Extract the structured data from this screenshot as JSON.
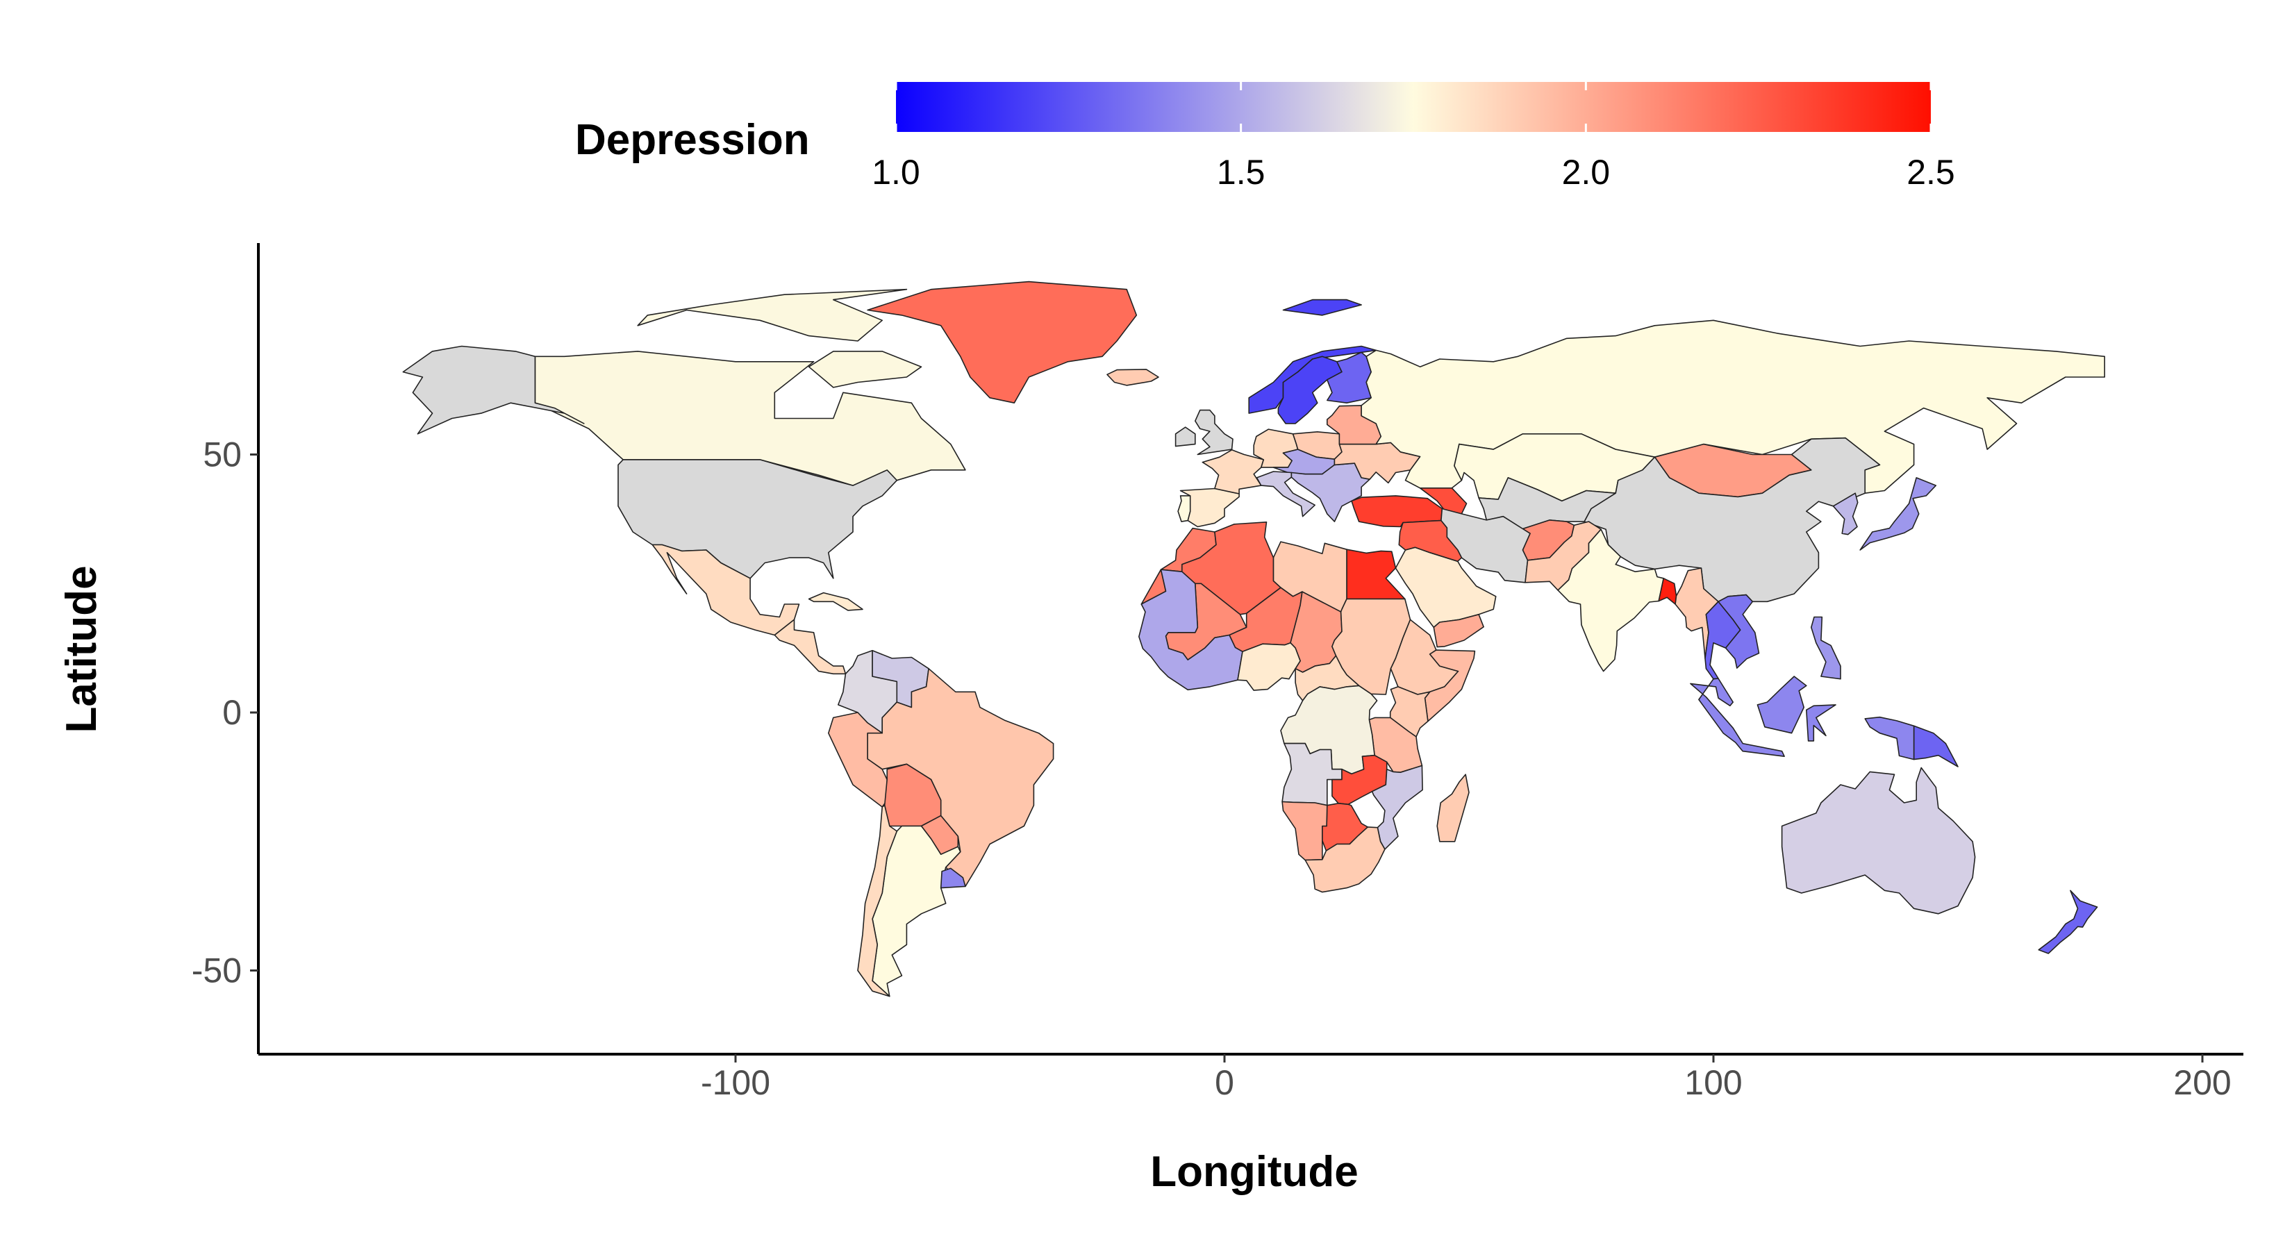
{
  "chart_data": {
    "type": "choropleth",
    "xlabel": "Longitude",
    "ylabel": "Latitude",
    "xlim": [
      -200,
      210
    ],
    "ylim": [
      -65,
      90
    ],
    "x_ticks": [
      -100,
      0,
      100,
      200
    ],
    "y_ticks": [
      -50,
      0,
      50
    ],
    "legend": {
      "title": "Depression",
      "position": "top",
      "range": [
        1.0,
        2.5
      ],
      "ticks": [
        1.0,
        1.5,
        2.0,
        2.5
      ],
      "colors": {
        "low": "#0b00ff",
        "mid": "#fffbdf",
        "high": "#ff0f00"
      },
      "midpoint": 1.75
    },
    "no_data_color": "#d9d9d9",
    "regions": [
      {
        "name": "Canada",
        "value": 1.74
      },
      {
        "name": "Alaska (USA)",
        "value": null
      },
      {
        "name": "United States",
        "value": null
      },
      {
        "name": "Greenland",
        "value": 2.2
      },
      {
        "name": "Mexico",
        "value": 1.85
      },
      {
        "name": "Central America",
        "value": 1.85
      },
      {
        "name": "Cuba",
        "value": 1.8
      },
      {
        "name": "Colombia",
        "value": 1.65
      },
      {
        "name": "Venezuela",
        "value": 1.6
      },
      {
        "name": "Brazil",
        "value": 1.92
      },
      {
        "name": "Peru",
        "value": 1.95
      },
      {
        "name": "Bolivia",
        "value": 2.1
      },
      {
        "name": "Paraguay",
        "value": 2.05
      },
      {
        "name": "Argentina",
        "value": 1.75
      },
      {
        "name": "Chile",
        "value": 1.85
      },
      {
        "name": "Uruguay",
        "value": 1.4
      },
      {
        "name": "Iceland",
        "value": 1.9
      },
      {
        "name": "Norway",
        "value": 1.2
      },
      {
        "name": "Sweden",
        "value": 1.2
      },
      {
        "name": "Finland",
        "value": 1.3
      },
      {
        "name": "United Kingdom",
        "value": null
      },
      {
        "name": "Ireland",
        "value": null
      },
      {
        "name": "France",
        "value": 1.85
      },
      {
        "name": "Spain",
        "value": 1.8
      },
      {
        "name": "Portugal",
        "value": 1.75
      },
      {
        "name": "Germany",
        "value": 1.85
      },
      {
        "name": "Poland",
        "value": 1.9
      },
      {
        "name": "Italy",
        "value": 1.6
      },
      {
        "name": "Central Europe",
        "value": 1.5
      },
      {
        "name": "Balkans",
        "value": 1.55
      },
      {
        "name": "Ukraine",
        "value": 1.9
      },
      {
        "name": "Belarus / Baltics",
        "value": 2.0
      },
      {
        "name": "Russia",
        "value": 1.75
      },
      {
        "name": "Turkey",
        "value": 2.35
      },
      {
        "name": "Caucasus",
        "value": 2.3
      },
      {
        "name": "Kazakhstan",
        "value": 1.75
      },
      {
        "name": "Mongolia",
        "value": 2.05
      },
      {
        "name": "China",
        "value": null
      },
      {
        "name": "Central Asia",
        "value": null
      },
      {
        "name": "Afghanistan",
        "value": 2.1
      },
      {
        "name": "Iran",
        "value": null
      },
      {
        "name": "Pakistan",
        "value": 1.9
      },
      {
        "name": "India",
        "value": 1.75
      },
      {
        "name": "Bangladesh",
        "value": 2.45
      },
      {
        "name": "Myanmar",
        "value": 1.9
      },
      {
        "name": "Thailand",
        "value": 1.3
      },
      {
        "name": "Indochina",
        "value": 1.35
      },
      {
        "name": "Malaysia / Indonesia",
        "value": 1.4
      },
      {
        "name": "Philippines",
        "value": 1.45
      },
      {
        "name": "Japan",
        "value": 1.45
      },
      {
        "name": "Korea",
        "value": 1.55
      },
      {
        "name": "Papua New Guinea",
        "value": 1.3
      },
      {
        "name": "Australia",
        "value": 1.62
      },
      {
        "name": "New Zealand",
        "value": 1.3
      },
      {
        "name": "Saudi Arabia",
        "value": 1.8
      },
      {
        "name": "Yemen",
        "value": 2.0
      },
      {
        "name": "Syria / Iraq",
        "value": 2.25
      },
      {
        "name": "Morocco",
        "value": 2.15
      },
      {
        "name": "Algeria",
        "value": 2.2
      },
      {
        "name": "Libya",
        "value": 1.9
      },
      {
        "name": "Egypt",
        "value": 2.4
      },
      {
        "name": "West Africa coast",
        "value": 1.5
      },
      {
        "name": "Mali",
        "value": 2.1
      },
      {
        "name": "Niger",
        "value": 2.15
      },
      {
        "name": "Chad",
        "value": 2.05
      },
      {
        "name": "Sudan",
        "value": 1.9
      },
      {
        "name": "Ethiopia",
        "value": 1.9
      },
      {
        "name": "Somalia",
        "value": 1.95
      },
      {
        "name": "Nigeria",
        "value": 1.8
      },
      {
        "name": "Central African Republic",
        "value": 1.85
      },
      {
        "name": "DR Congo",
        "value": 1.72
      },
      {
        "name": "Kenya",
        "value": 1.9
      },
      {
        "name": "Tanzania",
        "value": 1.95
      },
      {
        "name": "Angola",
        "value": 1.65
      },
      {
        "name": "Zambia",
        "value": 2.3
      },
      {
        "name": "Mozambique",
        "value": 1.6
      },
      {
        "name": "Namibia",
        "value": 2.0
      },
      {
        "name": "Botswana",
        "value": 2.25
      },
      {
        "name": "South Africa",
        "value": 1.9
      },
      {
        "name": "Madagascar",
        "value": 1.9
      }
    ]
  }
}
